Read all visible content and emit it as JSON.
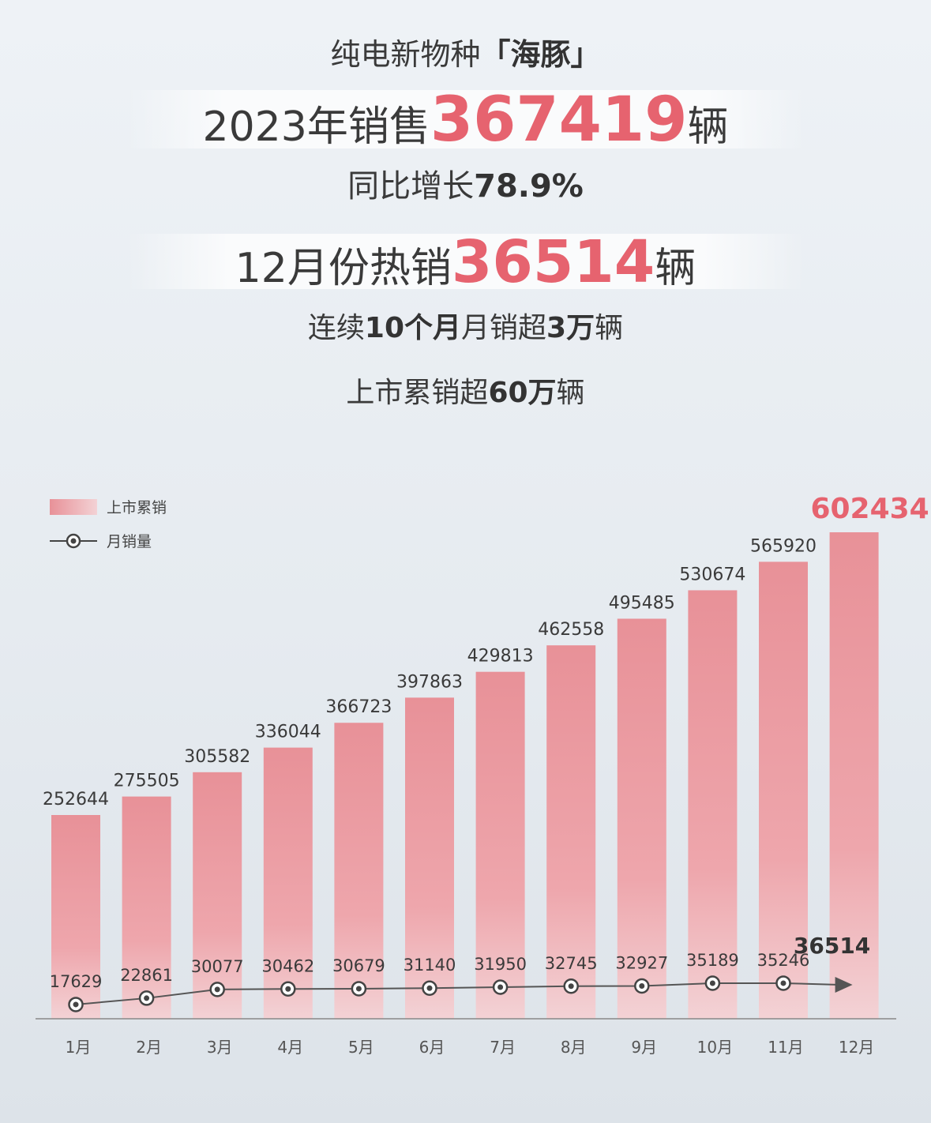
{
  "header": {
    "title_prefix": "纯电新物种",
    "title_bracket_open": "「",
    "title_name": "海豚",
    "title_bracket_close": "」",
    "sales_prefix": "2023年销售",
    "sales_value": "367419",
    "sales_unit": "辆",
    "growth_prefix": "同比增长",
    "growth_value": "78.9%",
    "dec_prefix": "12月份热销",
    "dec_value": "36514",
    "dec_unit": "辆",
    "streak_p1": "连续",
    "streak_b1": "10个月",
    "streak_p2": "月销超",
    "streak_b2": "3万",
    "streak_p3": "辆",
    "cum_prefix": "上市累销超",
    "cum_value": "60万",
    "cum_unit": "辆"
  },
  "colors": {
    "bar_top": "#e89198",
    "bar_bottom": "#f3d2d5",
    "highlight": "#e6636f",
    "line": "#555555"
  },
  "chart_data": {
    "type": "bar",
    "categories": [
      "1月",
      "2月",
      "3月",
      "4月",
      "5月",
      "6月",
      "7月",
      "8月",
      "9月",
      "10月",
      "11月",
      "12月"
    ],
    "series": [
      {
        "name": "上市累销",
        "type": "bar",
        "values": [
          252644,
          275505,
          305582,
          336044,
          366723,
          397863,
          429813,
          462558,
          495485,
          530674,
          565920,
          602434
        ]
      },
      {
        "name": "月销量",
        "type": "line",
        "values": [
          17629,
          22861,
          30077,
          30462,
          30679,
          31140,
          31950,
          32745,
          32927,
          35189,
          35246,
          36514
        ]
      }
    ],
    "legend_position": "top-left",
    "grid": false
  }
}
